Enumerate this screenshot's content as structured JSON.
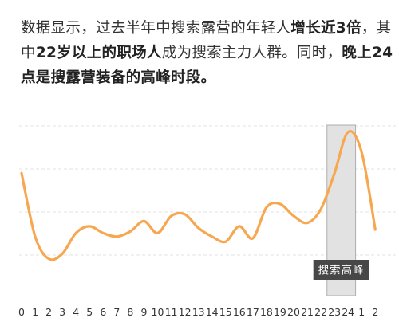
{
  "article": {
    "segments": [
      {
        "text": "数据显示，过去半年中搜索露营的年轻人",
        "bold": false
      },
      {
        "text": "增长近3倍",
        "bold": true
      },
      {
        "text": "，其中",
        "bold": false
      },
      {
        "text": "22岁以上的职场人",
        "bold": true
      },
      {
        "text": "成为搜索主力人群。同时，",
        "bold": false
      },
      {
        "text": "晚上24点是搜露营装备的高峰时段。",
        "bold": true
      }
    ]
  },
  "chart_data": {
    "type": "line",
    "x": [
      "0",
      "1",
      "2",
      "3",
      "4",
      "5",
      "6",
      "7",
      "8",
      "9",
      "10",
      "11",
      "12",
      "13",
      "14",
      "15",
      "16",
      "17",
      "18",
      "19",
      "20",
      "21",
      "22",
      "23",
      "24",
      "1",
      "2"
    ],
    "values": [
      72,
      35,
      22,
      25,
      37,
      41,
      37,
      35,
      38,
      44,
      37,
      47,
      48,
      40,
      35,
      32,
      41,
      34,
      52,
      54,
      47,
      43,
      51,
      72,
      96,
      84,
      39
    ],
    "ylim": [
      0,
      100
    ],
    "highlight": {
      "from": "23",
      "to": "24",
      "label": "搜索高峰"
    },
    "colors": {
      "line": "#F7A750",
      "highlight_fill": "#E2E2E2",
      "highlight_stroke": "#AEAEAE",
      "label_bg": "#474747",
      "label_text": "#FFFFFF",
      "grid": "#E3E3E3",
      "tick": "#333333"
    },
    "grid": true
  }
}
